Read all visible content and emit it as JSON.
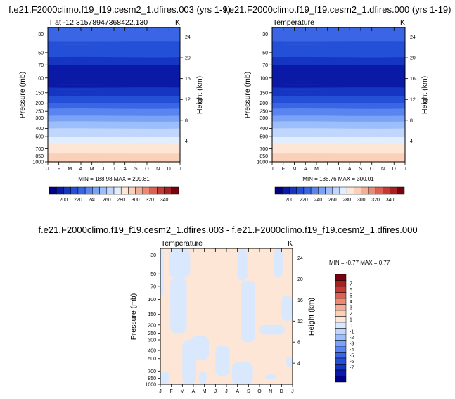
{
  "month_labels": [
    "J",
    "F",
    "M",
    "A",
    "M",
    "J",
    "J",
    "A",
    "S",
    "O",
    "N",
    "D",
    "J"
  ],
  "pressure_ticks": [
    30,
    50,
    70,
    100,
    150,
    200,
    250,
    300,
    400,
    500,
    700,
    850,
    1000
  ],
  "height_ticks": [
    4,
    8,
    12,
    16,
    20,
    24
  ],
  "colors": {
    "abs_scale": [
      "#00008b",
      "#0a1aa6",
      "#1436c3",
      "#2450d8",
      "#3a66e6",
      "#5a84f0",
      "#7aa2f6",
      "#9cbefa",
      "#c0d6fc",
      "#e2eefd",
      "#fde6d6",
      "#fbd0b8",
      "#f4ae95",
      "#ea8a74",
      "#dc6152",
      "#c53a34",
      "#a8201f",
      "#7a0010"
    ],
    "diff_scale": [
      "#00008b",
      "#0a1aa6",
      "#1436c3",
      "#2450d8",
      "#3a66e6",
      "#5a84f0",
      "#7aa2f6",
      "#9cbefa",
      "#c0d6fc",
      "#d9e8fd",
      "#fde6d6",
      "#fbd0b8",
      "#f4ae95",
      "#ea8a74",
      "#dc6152",
      "#c53a34",
      "#a8201f",
      "#7a0010"
    ],
    "diff_pos": "#fde6d6",
    "diff_neg": "#d9e8fd"
  },
  "chart_data": [
    {
      "type": "heatmap",
      "title": "f.e21.F2000climo.f19_f19.cesm2_1.dfires.003 (yrs 1-9)",
      "left_string": "T at -12.31578947368422,130",
      "right_string": "K",
      "ylabel": "Pressure (mb)",
      "y2label": "Height (km)",
      "ylim": [
        1000,
        25
      ],
      "min_max_label": "MIN = 188.98 MAX = 299.81",
      "min": 188.98,
      "max": 299.81,
      "colorbar_labels": [
        "200",
        "220",
        "240",
        "260",
        "280",
        "300",
        "320",
        "340"
      ],
      "profile": [
        {
          "p": 25,
          "t": 226
        },
        {
          "p": 30,
          "t": 224
        },
        {
          "p": 40,
          "t": 219
        },
        {
          "p": 50,
          "t": 214
        },
        {
          "p": 60,
          "t": 206
        },
        {
          "p": 70,
          "t": 200
        },
        {
          "p": 80,
          "t": 194
        },
        {
          "p": 100,
          "t": 190
        },
        {
          "p": 130,
          "t": 200
        },
        {
          "p": 150,
          "t": 205
        },
        {
          "p": 200,
          "t": 221
        },
        {
          "p": 250,
          "t": 233
        },
        {
          "p": 300,
          "t": 243
        },
        {
          "p": 400,
          "t": 259
        },
        {
          "p": 500,
          "t": 270
        },
        {
          "p": 600,
          "t": 279
        },
        {
          "p": 700,
          "t": 285
        },
        {
          "p": 850,
          "t": 293
        },
        {
          "p": 1000,
          "t": 299
        }
      ]
    },
    {
      "type": "heatmap",
      "title": "f.e21.F2000climo.f19_f19.cesm2_1.dfires.000 (yrs 1-19)",
      "left_string": "Temperature",
      "right_string": "K",
      "ylabel": "Pressure (mb)",
      "y2label": "Height (km)",
      "ylim": [
        1000,
        25
      ],
      "min_max_label": "MIN = 188.76 MAX = 300.01",
      "min": 188.76,
      "max": 300.01,
      "colorbar_labels": [
        "200",
        "220",
        "240",
        "260",
        "280",
        "300",
        "320",
        "340"
      ],
      "profile": [
        {
          "p": 25,
          "t": 226
        },
        {
          "p": 30,
          "t": 224
        },
        {
          "p": 40,
          "t": 219
        },
        {
          "p": 50,
          "t": 214
        },
        {
          "p": 60,
          "t": 206
        },
        {
          "p": 70,
          "t": 200
        },
        {
          "p": 80,
          "t": 194
        },
        {
          "p": 100,
          "t": 190
        },
        {
          "p": 130,
          "t": 200
        },
        {
          "p": 150,
          "t": 205
        },
        {
          "p": 200,
          "t": 221
        },
        {
          "p": 250,
          "t": 233
        },
        {
          "p": 300,
          "t": 243
        },
        {
          "p": 400,
          "t": 259
        },
        {
          "p": 500,
          "t": 270
        },
        {
          "p": 600,
          "t": 279
        },
        {
          "p": 700,
          "t": 285
        },
        {
          "p": 850,
          "t": 293
        },
        {
          "p": 1000,
          "t": 300
        }
      ]
    },
    {
      "type": "heatmap",
      "title": "f.e21.F2000climo.f19_f19.cesm2_1.dfires.003 - f.e21.F2000climo.f19_f19.cesm2_1.dfires.000",
      "left_string": "Temperature",
      "right_string": "K",
      "ylabel": "Pressure (mb)",
      "y2label": "Height (km)",
      "ylim": [
        1000,
        25
      ],
      "min_max_label": "MIN =  -0.77 MAX =   0.77",
      "min": -0.77,
      "max": 0.77,
      "colorbar_labels": [
        "7",
        "6",
        "5",
        "4",
        "3",
        "2",
        "1",
        "0",
        "-1",
        "-2",
        "-3",
        "-4",
        "-5",
        "-6",
        "-7"
      ],
      "negative_regions": [
        {
          "months": [
            0,
            0.3
          ],
          "p_range": [
            25,
            90
          ]
        },
        {
          "months": [
            0,
            0.8
          ],
          "p_range": [
            700,
            1000
          ]
        },
        {
          "months": [
            0.8,
            2.7
          ],
          "p_range": [
            25,
            55
          ]
        },
        {
          "months": [
            0.9,
            2.4
          ],
          "p_range": [
            55,
            250
          ]
        },
        {
          "months": [
            2.0,
            3.2
          ],
          "p_range": [
            300,
            1000
          ]
        },
        {
          "months": [
            2.8,
            4.4
          ],
          "p_range": [
            270,
            520
          ]
        },
        {
          "months": [
            3.5,
            4.2
          ],
          "p_range": [
            700,
            1000
          ]
        },
        {
          "months": [
            5.0,
            6.3
          ],
          "p_range": [
            350,
            800
          ]
        },
        {
          "months": [
            6.5,
            8.4
          ],
          "p_range": [
            550,
            1000
          ]
        },
        {
          "months": [
            7.0,
            7.9
          ],
          "p_range": [
            25,
            60
          ]
        },
        {
          "months": [
            7.3,
            8.6
          ],
          "p_range": [
            60,
            320
          ]
        },
        {
          "months": [
            9.0,
            11.3
          ],
          "p_range": [
            200,
            260
          ]
        },
        {
          "months": [
            9.5,
            10.5
          ],
          "p_range": [
            760,
            880
          ]
        },
        {
          "months": [
            10.3,
            11.1
          ],
          "p_range": [
            25,
            55
          ]
        },
        {
          "months": [
            11.0,
            12.0
          ],
          "p_range": [
            90,
            180
          ]
        },
        {
          "months": [
            11.4,
            12.0
          ],
          "p_range": [
            470,
            620
          ]
        }
      ]
    }
  ]
}
